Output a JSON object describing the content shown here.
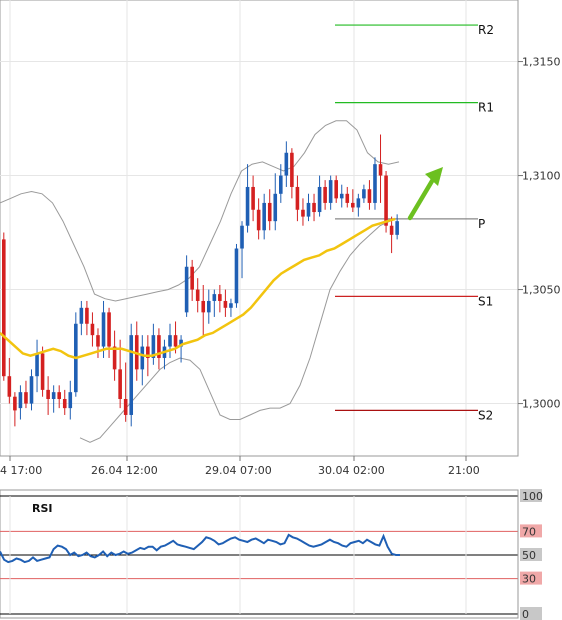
{
  "chart_data": [
    {
      "type": "candlestick",
      "title": "",
      "x_tick_labels": [
        "4 17:00",
        "26.04 12:00",
        "29.04 07:00",
        "30.04 02:00",
        "21:00"
      ],
      "y_tick_labels": [
        "1,3150",
        "1,3100",
        "1,3050",
        "1,3000"
      ],
      "y_ticks": [
        1.315,
        1.31,
        1.305,
        1.3
      ],
      "ylim": [
        1.2977,
        1.3177
      ],
      "grid": true,
      "levels": [
        {
          "label": "R2",
          "value": 1.3166,
          "color": "#22bb22"
        },
        {
          "label": "R1",
          "value": 1.3132,
          "color": "#22bb22"
        },
        {
          "label": "P",
          "value": 1.3081,
          "color": "#888888"
        },
        {
          "label": "S1",
          "value": 1.3047,
          "color": "#cc2222"
        },
        {
          "label": "S2",
          "value": 1.2997,
          "color": "#aa1111"
        }
      ],
      "up_color": "#1f5fb4",
      "down_color": "#d42020",
      "moving_average_color": "#f2c40f",
      "bands_color": "#9a9a9a",
      "arrow_color": "#6cc020",
      "candles": [
        [
          1.3072,
          1.3075,
          1.301,
          1.3012
        ],
        [
          1.3012,
          1.302,
          1.3,
          1.3003
        ],
        [
          1.3003,
          1.3005,
          1.299,
          1.2997
        ],
        [
          1.2998,
          1.3008,
          1.2993,
          1.3005
        ],
        [
          1.3005,
          1.301,
          1.2998,
          1.3
        ],
        [
          1.3,
          1.3015,
          1.2997,
          1.3012
        ],
        [
          1.3012,
          1.3028,
          1.3005,
          1.3022
        ],
        [
          1.3022,
          1.3025,
          1.3003,
          1.3006
        ],
        [
          1.3006,
          1.3012,
          1.2995,
          1.3002
        ],
        [
          1.3002,
          1.3008,
          1.2996,
          1.3005
        ],
        [
          1.3005,
          1.3008,
          1.2998,
          1.3002
        ],
        [
          1.3002,
          1.3006,
          1.2995,
          1.2998
        ],
        [
          1.2998,
          1.301,
          1.2993,
          1.3005
        ],
        [
          1.3005,
          1.304,
          1.3003,
          1.3035
        ],
        [
          1.3035,
          1.3045,
          1.303,
          1.3042
        ],
        [
          1.3042,
          1.3045,
          1.303,
          1.3035
        ],
        [
          1.3035,
          1.304,
          1.3025,
          1.303
        ],
        [
          1.303,
          1.3033,
          1.302,
          1.3025
        ],
        [
          1.3025,
          1.3045,
          1.302,
          1.304
        ],
        [
          1.304,
          1.3042,
          1.302,
          1.3025
        ],
        [
          1.3025,
          1.3032,
          1.301,
          1.3015
        ],
        [
          1.3015,
          1.3028,
          1.2998,
          1.3002
        ],
        [
          1.3002,
          1.3018,
          1.2992,
          1.2995
        ],
        [
          1.2995,
          1.3035,
          1.299,
          1.303
        ],
        [
          1.303,
          1.3036,
          1.301,
          1.3015
        ],
        [
          1.3015,
          1.303,
          1.3008,
          1.3025
        ],
        [
          1.3025,
          1.303,
          1.3012,
          1.302
        ],
        [
          1.302,
          1.3035,
          1.3017,
          1.303
        ],
        [
          1.303,
          1.3033,
          1.3015,
          1.302
        ],
        [
          1.302,
          1.3028,
          1.3015,
          1.3025
        ],
        [
          1.3025,
          1.3035,
          1.302,
          1.303
        ],
        [
          1.303,
          1.3036,
          1.3022,
          1.3025
        ],
        [
          1.3025,
          1.303,
          1.3018,
          1.3028
        ],
        [
          1.304,
          1.3065,
          1.3038,
          1.306
        ],
        [
          1.306,
          1.3063,
          1.3045,
          1.305
        ],
        [
          1.305,
          1.3055,
          1.304,
          1.3045
        ],
        [
          1.3045,
          1.3052,
          1.303,
          1.304
        ],
        [
          1.304,
          1.305,
          1.3035,
          1.3045
        ],
        [
          1.3045,
          1.305,
          1.3038,
          1.3048
        ],
        [
          1.3048,
          1.3052,
          1.304,
          1.3045
        ],
        [
          1.3045,
          1.305,
          1.3038,
          1.3042
        ],
        [
          1.3042,
          1.3046,
          1.3038,
          1.3044
        ],
        [
          1.3044,
          1.307,
          1.3042,
          1.3068
        ],
        [
          1.3068,
          1.308,
          1.3055,
          1.3078
        ],
        [
          1.3078,
          1.3105,
          1.3075,
          1.3095
        ],
        [
          1.3095,
          1.31,
          1.308,
          1.3085
        ],
        [
          1.3085,
          1.309,
          1.3072,
          1.3076
        ],
        [
          1.3076,
          1.3092,
          1.3072,
          1.3088
        ],
        [
          1.3088,
          1.3094,
          1.3076,
          1.308
        ],
        [
          1.308,
          1.3101,
          1.3076,
          1.3092
        ],
        [
          1.3092,
          1.3105,
          1.3088,
          1.31
        ],
        [
          1.31,
          1.3115,
          1.3095,
          1.311
        ],
        [
          1.311,
          1.3112,
          1.309,
          1.3095
        ],
        [
          1.3095,
          1.31,
          1.308,
          1.3085
        ],
        [
          1.3085,
          1.309,
          1.3078,
          1.3082
        ],
        [
          1.3082,
          1.3092,
          1.308,
          1.3088
        ],
        [
          1.3088,
          1.3092,
          1.308,
          1.3084
        ],
        [
          1.3084,
          1.31,
          1.3082,
          1.3095
        ],
        [
          1.3095,
          1.3098,
          1.3085,
          1.3088
        ],
        [
          1.3088,
          1.31,
          1.3085,
          1.3098
        ],
        [
          1.3098,
          1.31,
          1.3088,
          1.309
        ],
        [
          1.309,
          1.3096,
          1.3086,
          1.3092
        ],
        [
          1.3092,
          1.3095,
          1.3086,
          1.3088
        ],
        [
          1.3088,
          1.3094,
          1.3084,
          1.3086
        ],
        [
          1.3086,
          1.3092,
          1.3082,
          1.309
        ],
        [
          1.309,
          1.3096,
          1.3088,
          1.3094
        ],
        [
          1.3094,
          1.3098,
          1.3085,
          1.3088
        ],
        [
          1.3088,
          1.3108,
          1.3085,
          1.3105
        ],
        [
          1.3105,
          1.3118,
          1.3088,
          1.31
        ],
        [
          1.31,
          1.3102,
          1.3075,
          1.3078
        ],
        [
          1.3078,
          1.3082,
          1.3066,
          1.3074
        ],
        [
          1.3074,
          1.3083,
          1.3072,
          1.308
        ]
      ],
      "moving_average": [
        1.3031,
        1.3028,
        1.3025,
        1.3022,
        1.3021,
        1.3022,
        1.3023,
        1.3024,
        1.3023,
        1.3021,
        1.302,
        1.3021,
        1.3022,
        1.3023,
        1.3024,
        1.3024,
        1.3024,
        1.3023,
        1.3022,
        1.3021,
        1.3021,
        1.3022,
        1.3023,
        1.3024,
        1.3026,
        1.3027,
        1.3028,
        1.303,
        1.3031,
        1.3033,
        1.3035,
        1.3037,
        1.3039,
        1.3042,
        1.3046,
        1.305,
        1.3054,
        1.3057,
        1.3059,
        1.3061,
        1.3063,
        1.3064,
        1.3065,
        1.3067,
        1.3068,
        1.307,
        1.3072,
        1.3074,
        1.3076,
        1.3078,
        1.3079,
        1.308,
        1.3081
      ],
      "upper_band": [
        1.3088,
        1.309,
        1.3092,
        1.3093,
        1.3092,
        1.3088,
        1.308,
        1.307,
        1.306,
        1.3048,
        1.3046,
        1.3045,
        1.3046,
        1.3047,
        1.3048,
        1.3049,
        1.305,
        1.3052,
        1.3055,
        1.306,
        1.307,
        1.308,
        1.3092,
        1.3102,
        1.3105,
        1.3106,
        1.3104,
        1.3102,
        1.3104,
        1.311,
        1.3118,
        1.3122,
        1.3124,
        1.3124,
        1.312,
        1.311,
        1.3106,
        1.3105,
        1.3106
      ],
      "lower_band": [
        1.2985,
        1.2983,
        1.2985,
        1.299,
        1.2995,
        1.3,
        1.3005,
        1.301,
        1.3015,
        1.3018,
        1.302,
        1.3019,
        1.3015,
        1.3005,
        1.2995,
        1.2993,
        1.2993,
        1.2995,
        1.2997,
        1.2998,
        1.2998,
        1.3,
        1.3008,
        1.302,
        1.3035,
        1.305,
        1.3058,
        1.3065,
        1.307,
        1.3074,
        1.3078,
        1.308
      ],
      "up_arrow": true
    },
    {
      "type": "line",
      "title": "RSI",
      "series_name": "",
      "y_tick_labels": [
        "100",
        "70",
        "50",
        "30",
        "0"
      ],
      "ylim": [
        0,
        100
      ],
      "reference_lines": [
        70,
        50,
        30
      ],
      "line_color": "#1f5fb4",
      "values": [
        53,
        46,
        44,
        45,
        47,
        46,
        44,
        45,
        48,
        45,
        46,
        47,
        48,
        55,
        58,
        57,
        55,
        50,
        52,
        49,
        50,
        52,
        49,
        48,
        50,
        53,
        49,
        52,
        50,
        51,
        53,
        51,
        52,
        54,
        56,
        55,
        57,
        57,
        54,
        57,
        58,
        60,
        62,
        59,
        58,
        57,
        56,
        55,
        58,
        61,
        65,
        64,
        62,
        59,
        60,
        62,
        64,
        65,
        63,
        62,
        61,
        63,
        64,
        62,
        60,
        63,
        62,
        61,
        59,
        60,
        67,
        65,
        64,
        62,
        60,
        58,
        57,
        58,
        59,
        61,
        63,
        61,
        60,
        58,
        57,
        60,
        61,
        62,
        60,
        63,
        61,
        59,
        58,
        66,
        57,
        51,
        50,
        50
      ]
    }
  ]
}
